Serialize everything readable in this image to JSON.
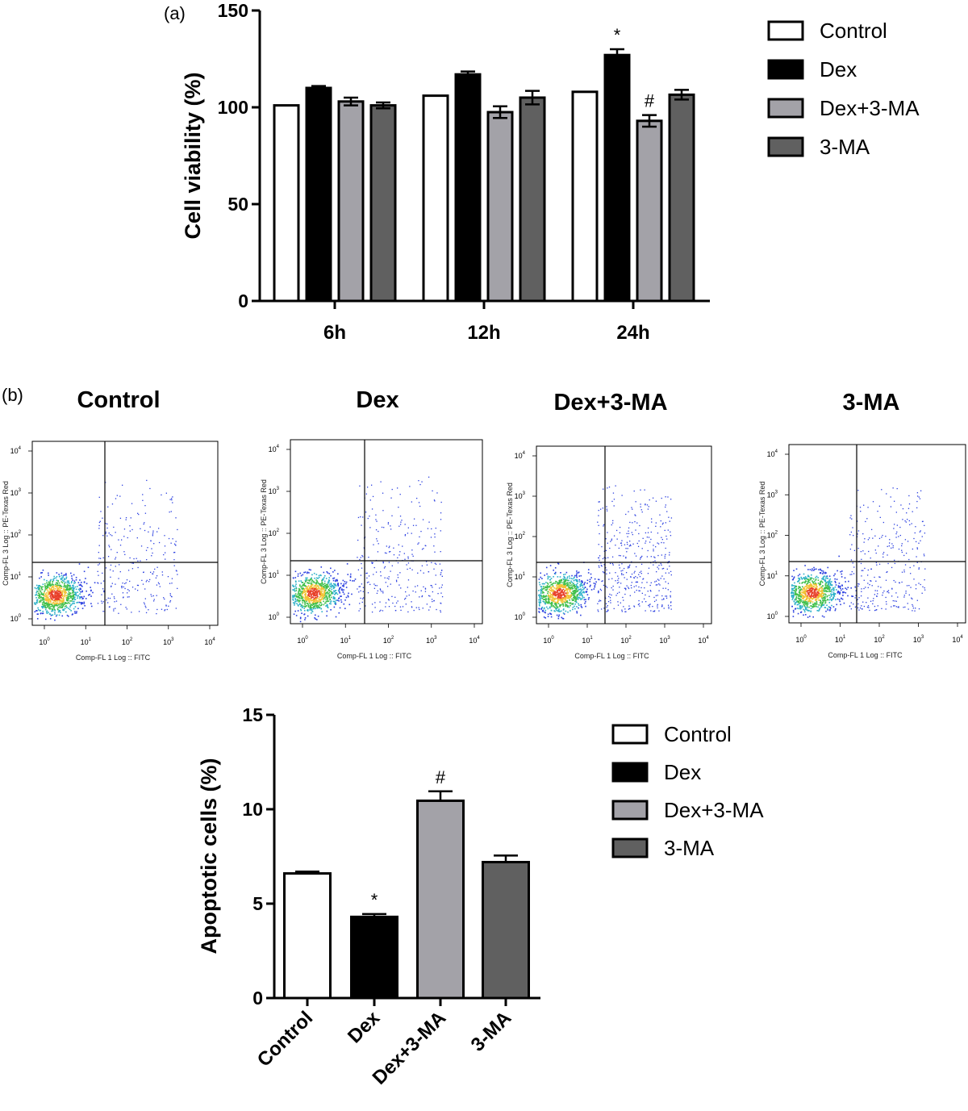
{
  "panel_a_label": "(a)",
  "panel_b_label": "(b)",
  "legend": [
    {
      "label": "Control",
      "color": "#ffffff"
    },
    {
      "label": "Dex",
      "color": "#000000"
    },
    {
      "label": "Dex+3-MA",
      "color": "#a3a2a8"
    },
    {
      "label": "3-MA",
      "color": "#606060"
    }
  ],
  "flow_panels": [
    {
      "title": "Control",
      "x_label": "Comp-FL 1 Log :: FITC",
      "y_label": "Comp-FL 3 Log :: PE-Texas Red",
      "ticks": [
        "0",
        "1",
        "2",
        "3",
        "4"
      ]
    },
    {
      "title": "Dex",
      "x_label": "Comp-FL 1 Log :: FITC",
      "y_label": "Comp-FL 3 Log :: PE-Texas Red",
      "ticks": [
        "0",
        "1",
        "2",
        "3",
        "4"
      ]
    },
    {
      "title": "Dex+3-MA",
      "x_label": "Comp-FL 1 Log :: FITC",
      "y_label": "Comp-FL 3 Log :: PE-Texas Red",
      "ticks": [
        "0",
        "1",
        "2",
        "3",
        "4"
      ]
    },
    {
      "title": "3-MA",
      "x_label": "Comp-FL 1 Log :: FITC",
      "y_label": "Comp-FL 3 Log :: PE-Texas Red",
      "ticks": [
        "0",
        "1",
        "2",
        "3",
        "4"
      ]
    }
  ],
  "chart_data": [
    {
      "type": "bar",
      "ylabel": "Cell viability (%)",
      "ylim": [
        0,
        150
      ],
      "yticks": [
        0,
        50,
        100,
        150
      ],
      "categories": [
        "6h",
        "12h",
        "24h"
      ],
      "series": [
        {
          "name": "Control",
          "values": [
            101,
            106,
            108
          ],
          "errors": [
            0,
            0,
            0
          ],
          "color": "#ffffff"
        },
        {
          "name": "Dex",
          "values": [
            110,
            117,
            127
          ],
          "errors": [
            1,
            1.5,
            3
          ],
          "color": "#000000"
        },
        {
          "name": "Dex+3-MA",
          "values": [
            103,
            97.5,
            93
          ],
          "errors": [
            2,
            3,
            3
          ],
          "color": "#a3a2a8"
        },
        {
          "name": "3-MA",
          "values": [
            101,
            105,
            106.5
          ],
          "errors": [
            1.5,
            3.5,
            2.5
          ],
          "color": "#606060"
        }
      ],
      "annotations": [
        {
          "category": "24h",
          "series": "Dex",
          "text": "*"
        },
        {
          "category": "24h",
          "series": "Dex+3-MA",
          "text": "#"
        }
      ],
      "legend_position": "top-right"
    },
    {
      "type": "bar",
      "ylabel": "Apoptotic cells (%)",
      "ylim": [
        0,
        15
      ],
      "yticks": [
        0,
        5,
        10,
        15
      ],
      "categories": [
        "Control",
        "Dex",
        "Dex+3-MA",
        "3-MA"
      ],
      "values": [
        6.6,
        4.3,
        10.45,
        7.2
      ],
      "errors": [
        0.1,
        0.15,
        0.5,
        0.35
      ],
      "colors": [
        "#ffffff",
        "#000000",
        "#a3a2a8",
        "#606060"
      ],
      "annotations": [
        {
          "category": "Dex",
          "text": "*"
        },
        {
          "category": "Dex+3-MA",
          "text": "#"
        }
      ],
      "legend_position": "right"
    }
  ]
}
